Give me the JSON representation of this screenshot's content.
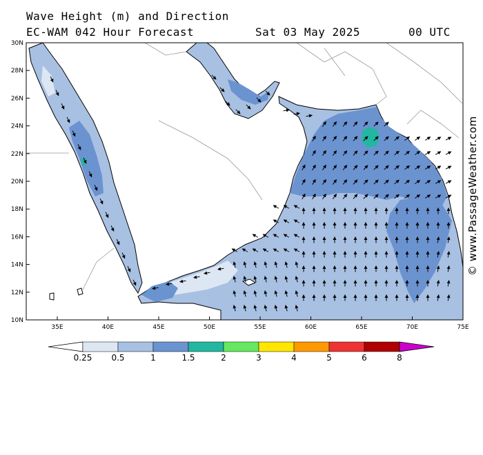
{
  "title": {
    "line1": "Wave Height (m) and Direction",
    "model": "EC-WAM 042 Hour Forecast",
    "date": "Sat 03 May 2025",
    "time": "00 UTC"
  },
  "credit": "© www.PassageWeather.com",
  "axes": {
    "lat_labels": [
      "30N",
      "28N",
      "26N",
      "24N",
      "22N",
      "20N",
      "18N",
      "16N",
      "14N",
      "12N",
      "10N"
    ],
    "lon_labels": [
      "35E",
      "40E",
      "45E",
      "50E",
      "55E",
      "60E",
      "65E",
      "70E",
      "75E"
    ]
  },
  "colorbar": {
    "labels": [
      "0.25",
      "0.5",
      "1",
      "1.5",
      "2",
      "3",
      "4",
      "5",
      "6",
      "8"
    ],
    "colors": [
      "#dde6f3",
      "#a8c0e2",
      "#6b93d0",
      "#22b7a0",
      "#66e860",
      "#ffe600",
      "#ff9900",
      "#ee3333",
      "#b00000",
      "#cc00cc"
    ]
  },
  "legend_unit": "m",
  "colors": {
    "land": "#ffffff",
    "sea_low": "#dde6f3",
    "sea_mid": "#a8c0e2",
    "sea_high": "#6b93d0",
    "sea_peak": "#22b7a0",
    "coast": "#000000",
    "border": "#999999"
  }
}
